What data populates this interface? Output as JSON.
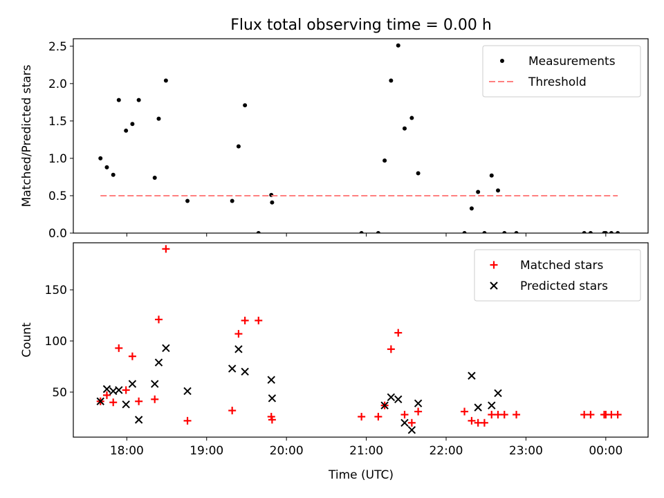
{
  "figure": {
    "title": "Flux total observing time = 0.00 h",
    "xlabel": "Time (UTC)"
  },
  "chart_data": [
    {
      "type": "scatter",
      "name": "ratio-panel",
      "ylabel": "Matched/Predicted stars",
      "xlim": [
        17.33,
        24.53
      ],
      "ylim": [
        0,
        2.6
      ],
      "yticks": [
        0.0,
        0.5,
        1.0,
        1.5,
        2.0,
        2.5
      ],
      "ytick_labels": [
        "0.0",
        "0.5",
        "1.0",
        "1.5",
        "2.0",
        "2.5"
      ],
      "legend_position": "upper right",
      "series": [
        {
          "name": "Measurements",
          "marker": "dot",
          "color": "#000000",
          "x": [
            17.67,
            17.75,
            17.83,
            17.9,
            17.99,
            18.07,
            18.15,
            18.35,
            18.4,
            18.49,
            18.76,
            19.32,
            19.4,
            19.48,
            19.65,
            19.81,
            19.82,
            20.94,
            21.15,
            21.23,
            21.31,
            21.4,
            21.48,
            21.57,
            21.65,
            22.23,
            22.32,
            22.4,
            22.48,
            22.57,
            22.65,
            22.73,
            22.88,
            23.73,
            23.81,
            23.98,
            24.0,
            24.07,
            24.15
          ],
          "y": [
            1.0,
            0.88,
            0.78,
            1.78,
            1.37,
            1.46,
            1.78,
            0.74,
            1.53,
            2.04,
            0.43,
            0.43,
            1.16,
            1.71,
            0.0,
            0.51,
            0.41,
            0.0,
            0.0,
            0.97,
            2.04,
            2.51,
            1.4,
            1.54,
            0.8,
            0.0,
            0.33,
            0.55,
            0.0,
            0.77,
            0.57,
            0.0,
            0.0,
            0.0,
            0.0,
            0.0,
            0.0,
            0.0,
            0.0
          ]
        },
        {
          "name": "Threshold",
          "marker": "dashed-line",
          "color": "#ff7f7f",
          "x": [
            17.67,
            24.15
          ],
          "y": [
            0.5,
            0.5
          ]
        }
      ]
    },
    {
      "type": "scatter",
      "name": "count-panel",
      "ylabel": "Count",
      "xlabel": "Time (UTC)",
      "xlim": [
        17.33,
        24.53
      ],
      "ylim": [
        6,
        196
      ],
      "yticks": [
        50,
        100,
        150
      ],
      "ytick_labels": [
        "50",
        "100",
        "150"
      ],
      "xticks": [
        18,
        19,
        20,
        21,
        22,
        23,
        24
      ],
      "xtick_labels": [
        "18:00",
        "19:00",
        "20:00",
        "21:00",
        "22:00",
        "23:00",
        "00:00"
      ],
      "legend_position": "upper right",
      "series": [
        {
          "name": "Matched stars",
          "marker": "plus",
          "color": "#ff0000",
          "x": [
            17.67,
            17.75,
            17.83,
            17.9,
            17.99,
            18.07,
            18.15,
            18.35,
            18.4,
            18.49,
            18.76,
            19.32,
            19.4,
            19.48,
            19.65,
            19.81,
            19.82,
            20.94,
            21.15,
            21.23,
            21.31,
            21.4,
            21.48,
            21.57,
            21.65,
            22.23,
            22.32,
            22.4,
            22.48,
            22.57,
            22.65,
            22.73,
            22.88,
            23.73,
            23.81,
            23.98,
            24.0,
            24.07,
            24.15
          ],
          "y": [
            41,
            47,
            40,
            93,
            52,
            85,
            41,
            43,
            121,
            190,
            22,
            32,
            107,
            120,
            120,
            26,
            23,
            26,
            26,
            37,
            92,
            108,
            28,
            20,
            31,
            31,
            22,
            20,
            20,
            28,
            28,
            28,
            28,
            28,
            28,
            28,
            28,
            28,
            28
          ]
        },
        {
          "name": "Predicted stars",
          "marker": "x",
          "color": "#000000",
          "x": [
            17.67,
            17.75,
            17.83,
            17.9,
            17.99,
            18.07,
            18.15,
            18.35,
            18.4,
            18.49,
            18.76,
            19.32,
            19.4,
            19.48,
            19.81,
            19.82,
            21.23,
            21.31,
            21.4,
            21.48,
            21.57,
            21.65,
            22.32,
            22.4,
            22.57,
            22.65
          ],
          "y": [
            41,
            53,
            51,
            52,
            38,
            58,
            23,
            58,
            79,
            93,
            51,
            73,
            92,
            70,
            62,
            44,
            37,
            45,
            43,
            20,
            13,
            39,
            66,
            35,
            37,
            49
          ]
        }
      ]
    }
  ]
}
